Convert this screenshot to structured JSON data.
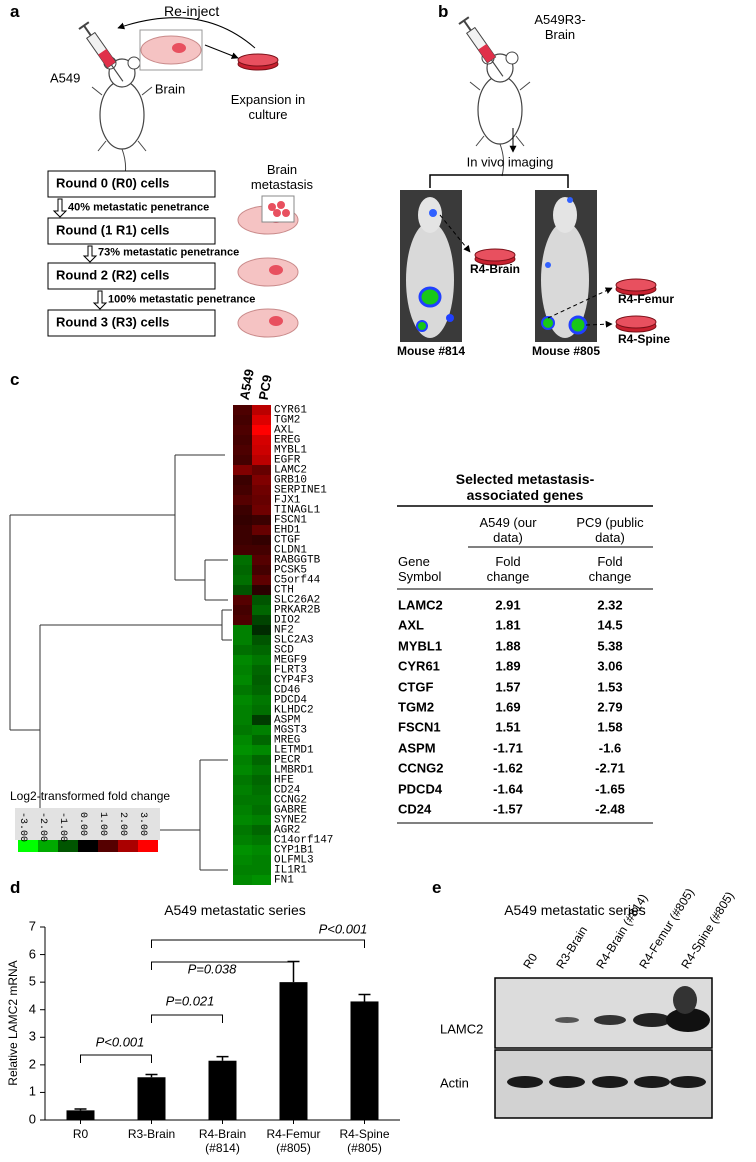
{
  "panel_labels": [
    "a",
    "b",
    "c",
    "d",
    "e"
  ],
  "panel_a": {
    "reinject": "Re-inject",
    "cell_line": "A549",
    "organ": "Brain",
    "culture": "Expansion in culture",
    "metastasis": "Brain metastasis",
    "rounds": [
      "Round 0 (R0) cells",
      "Round (1 R1) cells",
      "Round 2 (R2) cells",
      "Round 3 (R3) cells"
    ],
    "penetrance": [
      "40% metastatic penetrance",
      "73% metastatic penetrance",
      "100% metastatic penetrance"
    ]
  },
  "panel_b": {
    "injected": "A549R3-Brain",
    "imaging": "In vivo imaging",
    "mice": [
      "Mouse #814",
      "Mouse #805"
    ],
    "isolates": [
      "R4-Brain",
      "R4-Femur",
      "R4-Spine"
    ]
  },
  "table": {
    "title": "Selected metastasis-associated genes",
    "columns": [
      "A549 (our data)",
      "PC9 (public data)"
    ],
    "header": [
      "Gene Symbol",
      "Fold change",
      "Fold change"
    ],
    "rows": [
      [
        "LAMC2",
        2.91,
        2.32
      ],
      [
        "AXL",
        1.81,
        14.5
      ],
      [
        "MYBL1",
        1.88,
        5.38
      ],
      [
        "CYR61",
        1.89,
        3.06
      ],
      [
        "CTGF",
        1.57,
        1.53
      ],
      [
        "TGM2",
        1.69,
        2.79
      ],
      [
        "FSCN1",
        1.51,
        1.58
      ],
      [
        "ASPM",
        -1.71,
        -1.6
      ],
      [
        "CCNG2",
        -1.62,
        -2.71
      ],
      [
        "PDCD4",
        -1.64,
        -1.65
      ],
      [
        "CD24",
        -1.57,
        -2.48
      ]
    ]
  },
  "panel_e": {
    "title": "A549 metastatic series",
    "lanes": [
      "R0",
      "R3-Brain",
      "R4-Brain (#814)",
      "R4-Femur (#805)",
      "R4-Spine (#805)"
    ],
    "rows": [
      "LAMC2",
      "Actin"
    ]
  },
  "chart_data": [
    {
      "type": "heatmap",
      "columns": [
        "A549",
        "PC9"
      ],
      "rows": [
        "CYR61",
        "TGM2",
        "AXL",
        "EREG",
        "MYBL1",
        "EGFR",
        "LAMC2",
        "GRB10",
        "SERPINE1",
        "FJX1",
        "TINAGL1",
        "FSCN1",
        "EHD1",
        "CTGF",
        "CLDN1",
        "RABGGTB",
        "PCSK5",
        "C5orf44",
        "CTH",
        "SLC26A2",
        "PRKAR2B",
        "DIO2",
        "NF2",
        "SLC2A3",
        "SCD",
        "MEGF9",
        "FLRT3",
        "CYP4F3",
        "CD46",
        "PDCD4",
        "KLHDC2",
        "ASPM",
        "MGST3",
        "MREG",
        "LETMD1",
        "PECR",
        "LMBRD1",
        "HFE",
        "CD24",
        "CCNG2",
        "GABRE",
        "SYNE2",
        "AGR2",
        "C14orf147",
        "CYP1B1",
        "OLFML3",
        "IL1R1",
        "FN1"
      ],
      "values": [
        [
          0.9,
          2.2
        ],
        [
          0.8,
          2.6
        ],
        [
          0.9,
          3
        ],
        [
          0.8,
          2.5
        ],
        [
          0.9,
          2.4
        ],
        [
          0.8,
          2.2
        ],
        [
          1.5,
          1.2
        ],
        [
          0.7,
          1.5
        ],
        [
          0.8,
          1.3
        ],
        [
          1,
          1.2
        ],
        [
          0.7,
          1.3
        ],
        [
          0.6,
          0.7
        ],
        [
          0.7,
          1.2
        ],
        [
          0.7,
          0.6
        ],
        [
          0.8,
          0.8
        ],
        [
          -1.3,
          1
        ],
        [
          -1.2,
          0.8
        ],
        [
          -1.3,
          1.1
        ],
        [
          -1,
          0.5
        ],
        [
          1,
          -1
        ],
        [
          0.8,
          -1.2
        ],
        [
          0.9,
          -0.8
        ],
        [
          -1.5,
          -0.5
        ],
        [
          -1.5,
          -1
        ],
        [
          -1.3,
          -1.2
        ],
        [
          -1.6,
          -1.4
        ],
        [
          -1.5,
          -1.2
        ],
        [
          -1.6,
          -1.1
        ],
        [
          -1.4,
          -1.2
        ],
        [
          -1.6,
          -1.4
        ],
        [
          -1.5,
          -1.3
        ],
        [
          -1.5,
          -0.7
        ],
        [
          -1.4,
          -1.5
        ],
        [
          -1.6,
          -1.2
        ],
        [
          -1.7,
          -1.6
        ],
        [
          -1.5,
          -1.2
        ],
        [
          -1.6,
          -1.4
        ],
        [
          -1.4,
          -1.2
        ],
        [
          -1.5,
          -1.3
        ],
        [
          -1.4,
          -1.4
        ],
        [
          -1.5,
          -1.3
        ],
        [
          -1.6,
          -1.5
        ],
        [
          -1.4,
          -1.2
        ],
        [
          -1.5,
          -1.4
        ],
        [
          -1.7,
          -1.6
        ],
        [
          -1.6,
          -1.5
        ],
        [
          -1.5,
          -1.5
        ],
        [
          -1.6,
          -1.7
        ]
      ],
      "zlim": [
        -3,
        3
      ],
      "zticks": [
        {
          "value": -3,
          "label": "-3.00"
        },
        {
          "value": -2,
          "label": "-2.00"
        },
        {
          "value": -1,
          "label": "-1.00"
        },
        {
          "value": 0,
          "label": "0.00"
        },
        {
          "value": 1,
          "label": "1.00"
        },
        {
          "value": 2,
          "label": "2.00"
        },
        {
          "value": 3,
          "label": "3.00"
        }
      ],
      "colors": [
        "#00ff00",
        "#000000",
        "#ff0000"
      ],
      "colorbar_label": "Log2-transformed fold change"
    },
    {
      "type": "bar",
      "title": "A549 metastatic series",
      "ylabel": "Relative LAMC2 mRNA",
      "categories": [
        "R0",
        "R3-Brain",
        "R4-Brain (#814)",
        "R4-Femur (#805)",
        "R4-Spine (#805)"
      ],
      "values": [
        0.35,
        1.55,
        2.15,
        5.0,
        4.3
      ],
      "errors": [
        0.05,
        0.1,
        0.15,
        0.75,
        0.25
      ],
      "color": "#000000",
      "ylim": [
        0,
        7
      ],
      "yticks": [
        0,
        1,
        2,
        3,
        4,
        5,
        6,
        7
      ],
      "annotations": [
        "P<0.001",
        "P=0.021",
        "P=0.038",
        "P<0.001"
      ]
    }
  ]
}
